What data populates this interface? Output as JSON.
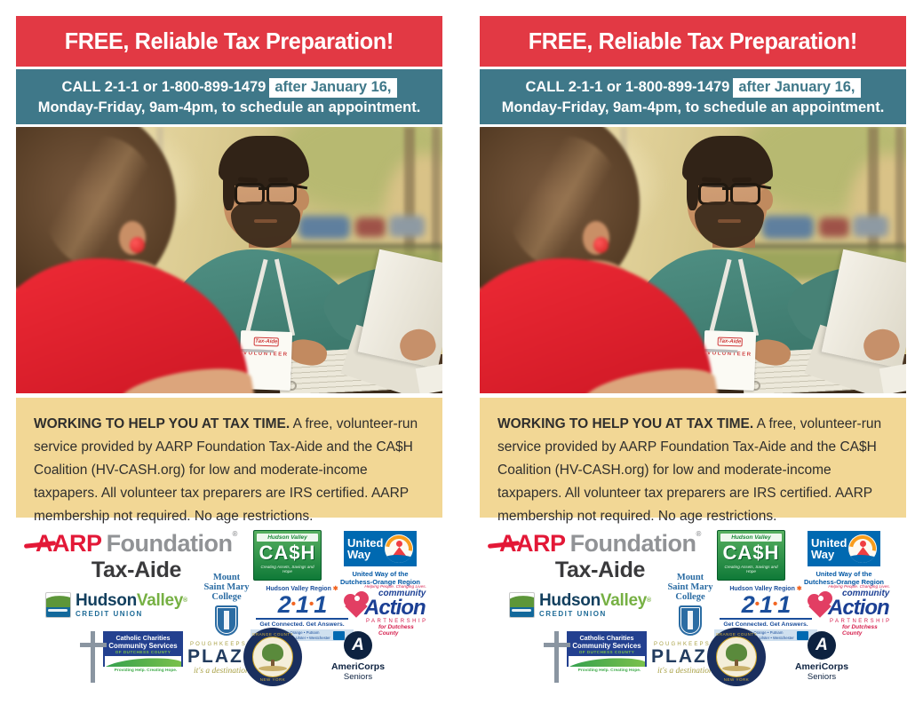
{
  "flyer": {
    "header": {
      "title": "FREE, Reliable Tax Preparation!"
    },
    "callbar": {
      "call_prefix": "CALL 2-1-1 or 1-800-899-1479",
      "highlight": "after January 16,",
      "line2": "Monday-Friday, 9am-4pm, to schedule an appointment."
    },
    "photo": {
      "badge_logo": "Tax-Aide",
      "badge_label": "VOLUNTEER"
    },
    "info": {
      "lead": "WORKING TO HELP YOU AT TAX TIME.",
      "body": " A free, volunteer-run service provided by AARP Foundation Tax-Aide and the CA$H Coalition (HV-CASH.org) for low and moderate-income taxpapers. All volunteer tax preparers are IRS certified. AARP membership not required. No age restrictions."
    },
    "logos": {
      "aarp": {
        "brand": "AARP",
        "reg": "®",
        "suffix": "Foundation",
        "sub": "Tax-Aide"
      },
      "cash": {
        "top": "Hudson Valley",
        "main": "CA$H",
        "tagline": "Creating Assets, Savings and Hope"
      },
      "united_way": {
        "word1": "United",
        "word2": "Way",
        "region1": "United Way of the",
        "region2": "Dutchess-Orange Region"
      },
      "hvcu": {
        "word1": "Hudson",
        "word2": "Valley",
        "reg": "®",
        "sub": "CREDIT UNION"
      },
      "msmc": {
        "line1": "Mount",
        "line2": "Saint Mary",
        "line3": "College"
      },
      "two11": {
        "region": "Hudson Valley Region",
        "star": "✱",
        "d1": "2",
        "d2": "1",
        "d3": "1",
        "dot": "•",
        "tagline": "Get Connected. Get Answers.",
        "counties1": "Dutchess • Orange • Putnam",
        "counties2": "Rockland • Sullivan • Ulster • Westchester"
      },
      "community_action": {
        "tagline": "Helping People. Changing Lives.",
        "word1": "community",
        "word2": "Action",
        "word3": "PARTNERSHIP",
        "word4": "for Dutchess County"
      },
      "catholic": {
        "line1": "Catholic Charities",
        "line2": "Community Services",
        "line3": "OF DUTCHESS COUNTY",
        "tagline": "Providing Help. Creating Hope."
      },
      "plaza": {
        "top": "POUGHKEEPSIE",
        "main": "PLAZA",
        "tagline": "it's a destination!"
      },
      "orange_county": {
        "top": "ORANGE COUNTY",
        "bottom": "NEW YORK"
      },
      "americorps": {
        "icon_letter": "A",
        "line1": "AmeriCorps",
        "line2": "Seniors"
      }
    }
  },
  "colors": {
    "header_red": "#e23944",
    "bar_teal": "#3f7889",
    "info_tan": "#f2d795",
    "aarp_red": "#e31837",
    "united_way_blue": "#0069b1",
    "hvcu_green": "#76b043",
    "navy_211": "#1b4e9b",
    "community_action_red": "#d6204e",
    "cash_green": "#0f7a38",
    "catholic_navy": "#23408f",
    "plaza_navy": "#223c5f",
    "seal_navy": "#1a2f5e",
    "americorps_navy": "#0d2240"
  }
}
